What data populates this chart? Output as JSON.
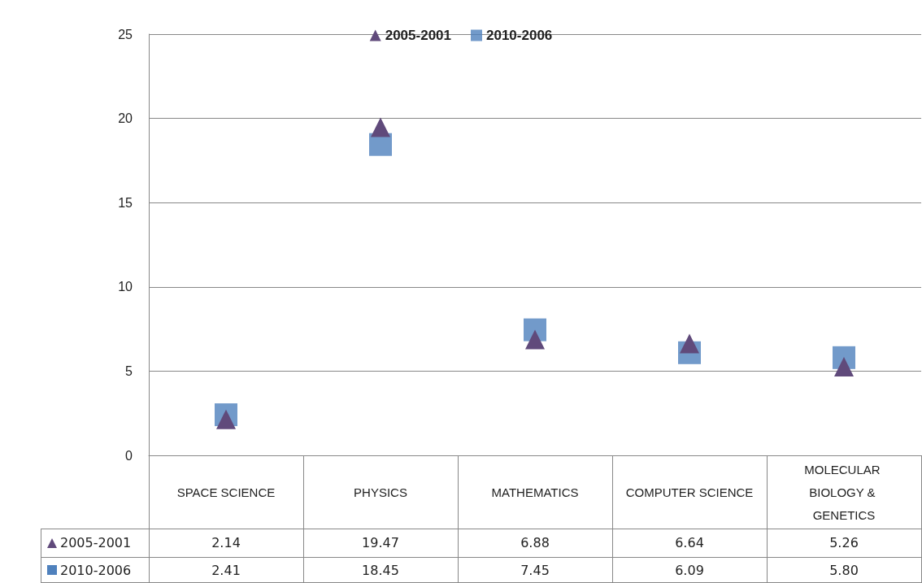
{
  "chart_data": {
    "type": "scatter",
    "categories": [
      "SPACE SCIENCE",
      "PHYSICS",
      "MATHEMATICS",
      "COMPUTER SCIENCE",
      "MOLECULAR BIOLOGY & GENETICS"
    ],
    "series": [
      {
        "name": "2005-2001",
        "color": "#604a7b",
        "marker": "triangle",
        "values": [
          2.14,
          19.47,
          6.88,
          6.64,
          5.26
        ],
        "value_labels": [
          "2.14",
          "19.47",
          "6.88",
          "6.64",
          "5.26"
        ]
      },
      {
        "name": "2010-2006",
        "color": "#4f81bd",
        "marker": "square",
        "values": [
          2.41,
          18.45,
          7.45,
          6.09,
          5.8
        ],
        "value_labels": [
          "2.41",
          "18.45",
          "7.45",
          "6.09",
          "5.80"
        ]
      }
    ],
    "ylim": [
      0,
      25
    ],
    "yticks": [
      0,
      5,
      10,
      15,
      20,
      25
    ],
    "grid": "y",
    "legend": "top"
  }
}
